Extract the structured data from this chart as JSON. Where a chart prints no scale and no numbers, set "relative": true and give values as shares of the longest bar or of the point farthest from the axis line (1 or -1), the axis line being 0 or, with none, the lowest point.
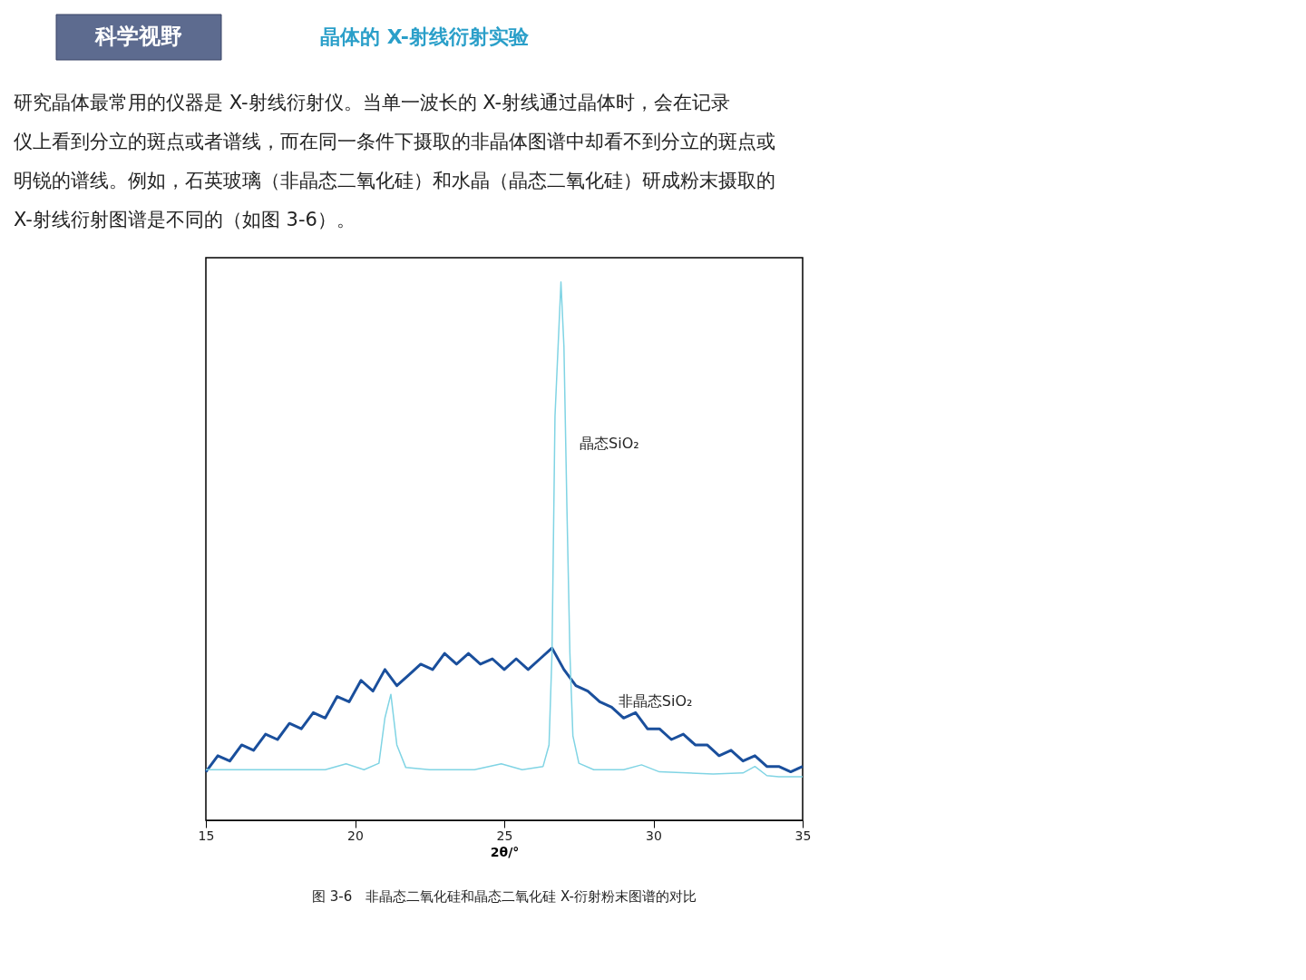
{
  "chart_data": {
    "type": "line",
    "title": "晶体的 X-射线衍射实验",
    "xlabel": "2θ/°",
    "relative": true,
    "grid": false,
    "xlim": [
      15,
      35
    ],
    "xticks": [
      15,
      20,
      25,
      30,
      35
    ],
    "series": [
      {
        "color": "#1a4f9c",
        "x": [
          15,
          15.4,
          15.8,
          16.2,
          16.6,
          17,
          17.4,
          17.8,
          18.2,
          18.6,
          19,
          19.4,
          19.8,
          20.2,
          20.6,
          21,
          21.4,
          21.8,
          22.2,
          22.6,
          23,
          23.4,
          23.8,
          24.2,
          24.6,
          25,
          25.4,
          25.8,
          26.2,
          26.6,
          27,
          27.4,
          27.8,
          28.2,
          28.6,
          29,
          29.4,
          29.8,
          30.2,
          30.6,
          31,
          31.4,
          31.8,
          32.2,
          32.6,
          33,
          33.4,
          33.8,
          34.2,
          34.6,
          35
        ],
        "values": [
          0.09,
          0.12,
          0.11,
          0.14,
          0.13,
          0.16,
          0.15,
          0.18,
          0.17,
          0.2,
          0.19,
          0.23,
          0.22,
          0.26,
          0.24,
          0.28,
          0.25,
          0.27,
          0.29,
          0.28,
          0.31,
          0.29,
          0.31,
          0.29,
          0.3,
          0.28,
          0.3,
          0.28,
          0.3,
          0.32,
          0.28,
          0.25,
          0.24,
          0.22,
          0.21,
          0.19,
          0.2,
          0.17,
          0.17,
          0.15,
          0.16,
          0.14,
          0.14,
          0.12,
          0.13,
          0.11,
          0.12,
          0.1,
          0.1,
          0.09,
          0.1
        ]
      },
      {
        "color": "#80d4e4",
        "x": [
          15,
          17,
          19,
          19.7,
          20.3,
          20.8,
          21.0,
          21.2,
          21.4,
          21.7,
          22.5,
          24.0,
          24.9,
          25.6,
          26.3,
          26.5,
          26.6,
          26.7,
          26.9,
          27.0,
          27.1,
          27.2,
          27.3,
          27.5,
          28,
          29.0,
          29.6,
          30.2,
          32,
          33.0,
          33.4,
          33.8,
          34.2,
          35
        ],
        "values": [
          0.094,
          0.094,
          0.094,
          0.105,
          0.094,
          0.106,
          0.19,
          0.234,
          0.14,
          0.098,
          0.094,
          0.094,
          0.105,
          0.094,
          0.1,
          0.14,
          0.31,
          0.75,
          1,
          0.88,
          0.58,
          0.31,
          0.157,
          0.106,
          0.094,
          0.094,
          0.103,
          0.09,
          0.086,
          0.088,
          0.1,
          0.083,
          0.081,
          0.081
        ]
      }
    ],
    "annotations": [
      "科学视野",
      "研究晶体最常用的仪器是 X-射线衍射仪。当单一波长的 X-射线通过晶体时，会在记录仪上看到分立的斑点或者谱线，而在同一条件下摄取的非晶体图谱中却看不到分立的斑点或明锐的谱线。例如，石英玻璃（非晶态二氧化硅）和水晶（晶态二氧化硅）研成粉末摄取的 X-射线衍射图谱是不同的（如图 3-6）。",
      {
        "text": "晶态SiO₂",
        "x": 27.1,
        "y": 0.7
      },
      {
        "text": "非晶态SiO₂",
        "x": 28.4,
        "y": 0.22
      },
      "图 3-6　非晶态二氧化硅和晶态二氧化硅 X-衍射粉末图谱的对比"
    ]
  }
}
